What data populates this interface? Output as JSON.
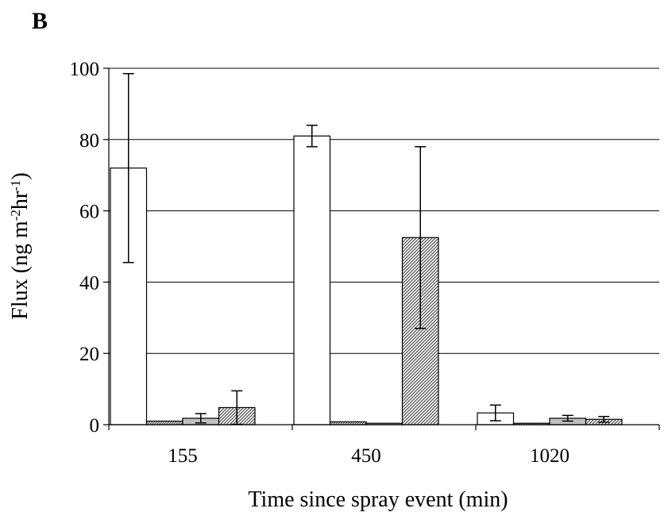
{
  "panel_label": "B",
  "chart_data": {
    "type": "bar",
    "xlabel": "Time since spray event (min)",
    "ylabel_main": "Flux (ng m",
    "ylabel_sup1": "-2",
    "ylabel_mid": "hr",
    "ylabel_sup2": "-1",
    "ylabel_end": ")",
    "categories": [
      "155",
      "450",
      "1020"
    ],
    "ylim": [
      0,
      100
    ],
    "yticks": [
      0,
      20,
      40,
      60,
      80,
      100
    ],
    "grid": true,
    "series": [
      {
        "values": [
          72,
          81,
          3.3
        ],
        "errors": [
          26.5,
          3,
          2.2
        ],
        "fill": "#ffffff",
        "pattern": "none"
      },
      {
        "values": [
          1.0,
          0.8,
          0.4
        ],
        "errors": [
          0,
          0,
          0
        ],
        "fill": "#ffffff",
        "pattern": "dense-hatch"
      },
      {
        "values": [
          1.8,
          0.4,
          1.8
        ],
        "errors": [
          1.3,
          0,
          0.8
        ],
        "fill": "#c0c0c0",
        "pattern": "none"
      },
      {
        "values": [
          4.8,
          52.5,
          1.5
        ],
        "errors": [
          4.7,
          25.5,
          0.8
        ],
        "fill": "#ffffff",
        "pattern": "hatch"
      }
    ]
  }
}
